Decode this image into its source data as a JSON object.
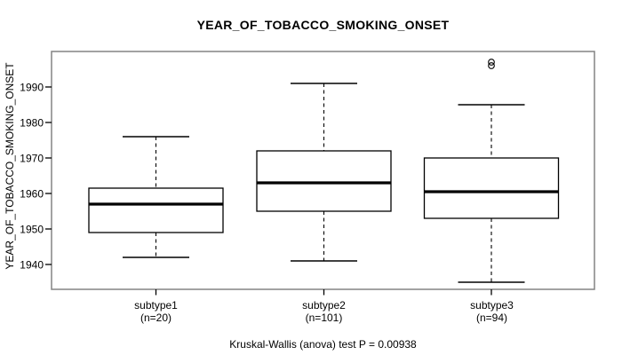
{
  "chart_data": {
    "type": "boxplot",
    "title": "YEAR_OF_TOBACCO_SMOKING_ONSET",
    "ylabel": "YEAR_OF_TOBACCO_SMOKING_ONSET",
    "caption": "Kruskal-Wallis (anova) test P = 0.00938",
    "p_value": 0.00938,
    "ylim": [
      1933,
      2000
    ],
    "yticks": [
      1940,
      1950,
      1960,
      1970,
      1980,
      1990
    ],
    "grid": false,
    "legend": "none",
    "categories": [
      "subtype1",
      "subtype2",
      "subtype3"
    ],
    "groups": [
      {
        "label": "subtype1",
        "sublabel": "(n=20)",
        "n": 20,
        "whisker_low": 1942,
        "q1": 1949,
        "median": 1957,
        "q3": 1961.5,
        "whisker_high": 1976,
        "outliers": []
      },
      {
        "label": "subtype2",
        "sublabel": "(n=101)",
        "n": 101,
        "whisker_low": 1941,
        "q1": 1955,
        "median": 1963,
        "q3": 1972,
        "whisker_high": 1991,
        "outliers": []
      },
      {
        "label": "subtype3",
        "sublabel": "(n=94)",
        "n": 94,
        "whisker_low": 1935,
        "q1": 1953,
        "median": 1960.5,
        "q3": 1970,
        "whisker_high": 1985,
        "outliers": [
          1996,
          1997
        ]
      }
    ],
    "colors": {
      "box_fill": "#ffffff",
      "line": "#000000",
      "frame": "#848484",
      "text": "#000000",
      "background": "#ffffff"
    }
  }
}
